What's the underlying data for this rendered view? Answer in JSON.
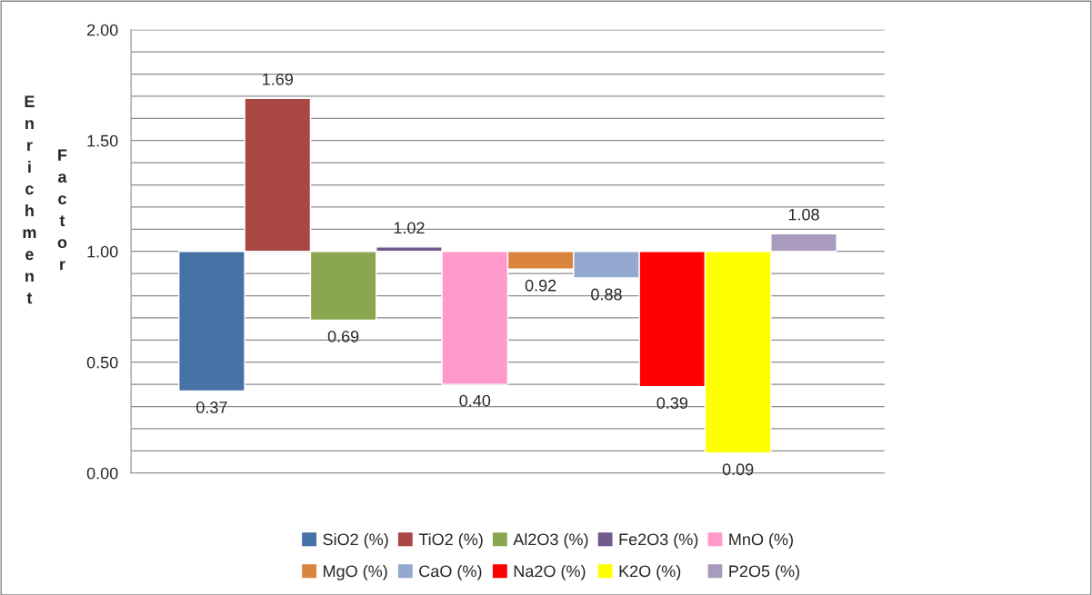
{
  "chart_data": {
    "type": "bar",
    "ylabel": "Enrichment Factor",
    "categories": [
      null
    ],
    "series": [
      {
        "name": "SiO2 (%)",
        "color": "#4672a8",
        "base": [
          1.0
        ],
        "values": [
          -0.63
        ],
        "value_labels": [
          "0.37"
        ]
      },
      {
        "name": "TiO2 (%)",
        "color": "#a94744",
        "base": [
          1.0
        ],
        "values": [
          0.69
        ],
        "value_labels": [
          "1.69"
        ]
      },
      {
        "name": "Al2O3 (%)",
        "color": "#8aa64f",
        "base": [
          1.0
        ],
        "values": [
          -0.31
        ],
        "value_labels": [
          "0.69"
        ]
      },
      {
        "name": "Fe2O3 (%)",
        "color": "#71588f",
        "base": [
          1.0
        ],
        "values": [
          0.02
        ],
        "value_labels": [
          "1.02"
        ]
      },
      {
        "name": "MnO (%)",
        "color": "#ff99cc",
        "base": [
          1.0
        ],
        "values": [
          -0.6
        ],
        "value_labels": [
          "0.40"
        ]
      },
      {
        "name": "MgO (%)",
        "color": "#db843d",
        "base": [
          1.0
        ],
        "values": [
          -0.08
        ],
        "value_labels": [
          "0.92"
        ]
      },
      {
        "name": "CaO (%)",
        "color": "#93a9d0",
        "base": [
          1.0
        ],
        "values": [
          -0.12
        ],
        "value_labels": [
          "0.88"
        ]
      },
      {
        "name": "Na2O (%)",
        "color": "#ff0000",
        "base": [
          1.0
        ],
        "values": [
          -0.61
        ],
        "value_labels": [
          "0.39"
        ]
      },
      {
        "name": "K2O (%)",
        "color": "#ffff00",
        "base": [
          1.0
        ],
        "values": [
          -0.91
        ],
        "value_labels": [
          "0.09"
        ]
      },
      {
        "name": "P2O5 (%)",
        "color": "#a99bbd",
        "base": [
          1.0
        ],
        "values": [
          0.08
        ],
        "value_labels": [
          "1.08"
        ]
      }
    ],
    "ylim": [
      0,
      2
    ],
    "yticks": [
      {
        "value": 0,
        "label": "0.00"
      },
      {
        "value": 0.1,
        "label": null
      },
      {
        "value": 0.2,
        "label": null
      },
      {
        "value": 0.3,
        "label": null
      },
      {
        "value": 0.4,
        "label": null
      },
      {
        "value": 0.5,
        "label": "0.50"
      },
      {
        "value": 0.6,
        "label": null
      },
      {
        "value": 0.7,
        "label": null
      },
      {
        "value": 0.8,
        "label": null
      },
      {
        "value": 0.9,
        "label": null
      },
      {
        "value": 1.0,
        "label": "1.00"
      },
      {
        "value": 1.1,
        "label": null
      },
      {
        "value": 1.2,
        "label": null
      },
      {
        "value": 1.3,
        "label": null
      },
      {
        "value": 1.4,
        "label": null
      },
      {
        "value": 1.5,
        "label": "1.50"
      },
      {
        "value": 1.6,
        "label": null
      },
      {
        "value": 1.7,
        "label": null
      },
      {
        "value": 1.8,
        "label": null
      },
      {
        "value": 1.9,
        "label": null
      },
      {
        "value": 2.0,
        "label": "2.00"
      }
    ],
    "grid": "y",
    "legend": "bottom"
  }
}
